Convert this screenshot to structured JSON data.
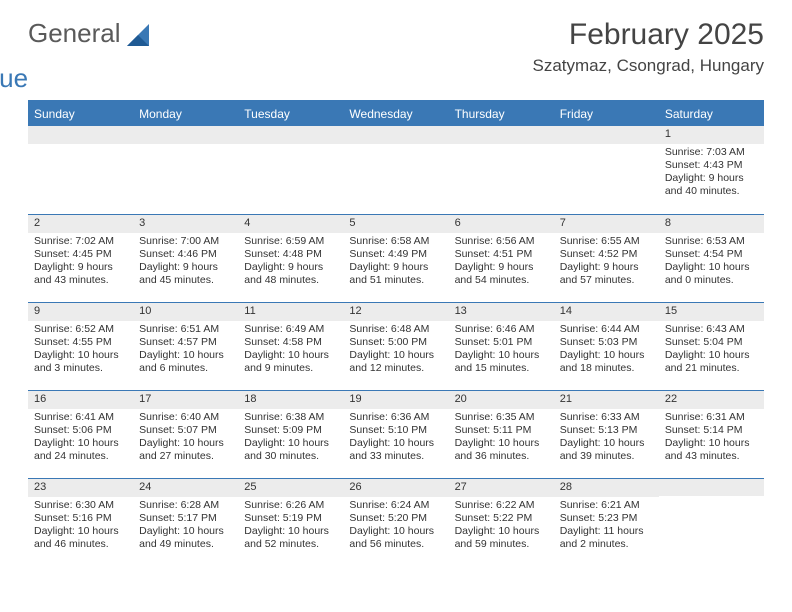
{
  "brand": {
    "general": "General",
    "blue": "Blue"
  },
  "header": {
    "month_title": "February 2025",
    "location": "Szatymaz, Csongrad, Hungary"
  },
  "style": {
    "accent": "#3a78b5",
    "weekday_bg": "#3a78b5",
    "weekday_fg": "#ffffff",
    "daynum_bg": "#ececec",
    "body_bg": "#ffffff",
    "text_color": "#333333",
    "divider_color": "#3a78b5",
    "title_fontsize": 30,
    "location_fontsize": 17,
    "weekday_fontsize": 12,
    "cell_fontsize": 10.5
  },
  "weekdays": [
    "Sunday",
    "Monday",
    "Tuesday",
    "Wednesday",
    "Thursday",
    "Friday",
    "Saturday"
  ],
  "calendar": {
    "start_weekday_index": 6,
    "days": [
      {
        "n": 1,
        "sunrise": "Sunrise: 7:03 AM",
        "sunset": "Sunset: 4:43 PM",
        "daylight1": "Daylight: 9 hours",
        "daylight2": "and 40 minutes."
      },
      {
        "n": 2,
        "sunrise": "Sunrise: 7:02 AM",
        "sunset": "Sunset: 4:45 PM",
        "daylight1": "Daylight: 9 hours",
        "daylight2": "and 43 minutes."
      },
      {
        "n": 3,
        "sunrise": "Sunrise: 7:00 AM",
        "sunset": "Sunset: 4:46 PM",
        "daylight1": "Daylight: 9 hours",
        "daylight2": "and 45 minutes."
      },
      {
        "n": 4,
        "sunrise": "Sunrise: 6:59 AM",
        "sunset": "Sunset: 4:48 PM",
        "daylight1": "Daylight: 9 hours",
        "daylight2": "and 48 minutes."
      },
      {
        "n": 5,
        "sunrise": "Sunrise: 6:58 AM",
        "sunset": "Sunset: 4:49 PM",
        "daylight1": "Daylight: 9 hours",
        "daylight2": "and 51 minutes."
      },
      {
        "n": 6,
        "sunrise": "Sunrise: 6:56 AM",
        "sunset": "Sunset: 4:51 PM",
        "daylight1": "Daylight: 9 hours",
        "daylight2": "and 54 minutes."
      },
      {
        "n": 7,
        "sunrise": "Sunrise: 6:55 AM",
        "sunset": "Sunset: 4:52 PM",
        "daylight1": "Daylight: 9 hours",
        "daylight2": "and 57 minutes."
      },
      {
        "n": 8,
        "sunrise": "Sunrise: 6:53 AM",
        "sunset": "Sunset: 4:54 PM",
        "daylight1": "Daylight: 10 hours",
        "daylight2": "and 0 minutes."
      },
      {
        "n": 9,
        "sunrise": "Sunrise: 6:52 AM",
        "sunset": "Sunset: 4:55 PM",
        "daylight1": "Daylight: 10 hours",
        "daylight2": "and 3 minutes."
      },
      {
        "n": 10,
        "sunrise": "Sunrise: 6:51 AM",
        "sunset": "Sunset: 4:57 PM",
        "daylight1": "Daylight: 10 hours",
        "daylight2": "and 6 minutes."
      },
      {
        "n": 11,
        "sunrise": "Sunrise: 6:49 AM",
        "sunset": "Sunset: 4:58 PM",
        "daylight1": "Daylight: 10 hours",
        "daylight2": "and 9 minutes."
      },
      {
        "n": 12,
        "sunrise": "Sunrise: 6:48 AM",
        "sunset": "Sunset: 5:00 PM",
        "daylight1": "Daylight: 10 hours",
        "daylight2": "and 12 minutes."
      },
      {
        "n": 13,
        "sunrise": "Sunrise: 6:46 AM",
        "sunset": "Sunset: 5:01 PM",
        "daylight1": "Daylight: 10 hours",
        "daylight2": "and 15 minutes."
      },
      {
        "n": 14,
        "sunrise": "Sunrise: 6:44 AM",
        "sunset": "Sunset: 5:03 PM",
        "daylight1": "Daylight: 10 hours",
        "daylight2": "and 18 minutes."
      },
      {
        "n": 15,
        "sunrise": "Sunrise: 6:43 AM",
        "sunset": "Sunset: 5:04 PM",
        "daylight1": "Daylight: 10 hours",
        "daylight2": "and 21 minutes."
      },
      {
        "n": 16,
        "sunrise": "Sunrise: 6:41 AM",
        "sunset": "Sunset: 5:06 PM",
        "daylight1": "Daylight: 10 hours",
        "daylight2": "and 24 minutes."
      },
      {
        "n": 17,
        "sunrise": "Sunrise: 6:40 AM",
        "sunset": "Sunset: 5:07 PM",
        "daylight1": "Daylight: 10 hours",
        "daylight2": "and 27 minutes."
      },
      {
        "n": 18,
        "sunrise": "Sunrise: 6:38 AM",
        "sunset": "Sunset: 5:09 PM",
        "daylight1": "Daylight: 10 hours",
        "daylight2": "and 30 minutes."
      },
      {
        "n": 19,
        "sunrise": "Sunrise: 6:36 AM",
        "sunset": "Sunset: 5:10 PM",
        "daylight1": "Daylight: 10 hours",
        "daylight2": "and 33 minutes."
      },
      {
        "n": 20,
        "sunrise": "Sunrise: 6:35 AM",
        "sunset": "Sunset: 5:11 PM",
        "daylight1": "Daylight: 10 hours",
        "daylight2": "and 36 minutes."
      },
      {
        "n": 21,
        "sunrise": "Sunrise: 6:33 AM",
        "sunset": "Sunset: 5:13 PM",
        "daylight1": "Daylight: 10 hours",
        "daylight2": "and 39 minutes."
      },
      {
        "n": 22,
        "sunrise": "Sunrise: 6:31 AM",
        "sunset": "Sunset: 5:14 PM",
        "daylight1": "Daylight: 10 hours",
        "daylight2": "and 43 minutes."
      },
      {
        "n": 23,
        "sunrise": "Sunrise: 6:30 AM",
        "sunset": "Sunset: 5:16 PM",
        "daylight1": "Daylight: 10 hours",
        "daylight2": "and 46 minutes."
      },
      {
        "n": 24,
        "sunrise": "Sunrise: 6:28 AM",
        "sunset": "Sunset: 5:17 PM",
        "daylight1": "Daylight: 10 hours",
        "daylight2": "and 49 minutes."
      },
      {
        "n": 25,
        "sunrise": "Sunrise: 6:26 AM",
        "sunset": "Sunset: 5:19 PM",
        "daylight1": "Daylight: 10 hours",
        "daylight2": "and 52 minutes."
      },
      {
        "n": 26,
        "sunrise": "Sunrise: 6:24 AM",
        "sunset": "Sunset: 5:20 PM",
        "daylight1": "Daylight: 10 hours",
        "daylight2": "and 56 minutes."
      },
      {
        "n": 27,
        "sunrise": "Sunrise: 6:22 AM",
        "sunset": "Sunset: 5:22 PM",
        "daylight1": "Daylight: 10 hours",
        "daylight2": "and 59 minutes."
      },
      {
        "n": 28,
        "sunrise": "Sunrise: 6:21 AM",
        "sunset": "Sunset: 5:23 PM",
        "daylight1": "Daylight: 11 hours",
        "daylight2": "and 2 minutes."
      }
    ]
  }
}
